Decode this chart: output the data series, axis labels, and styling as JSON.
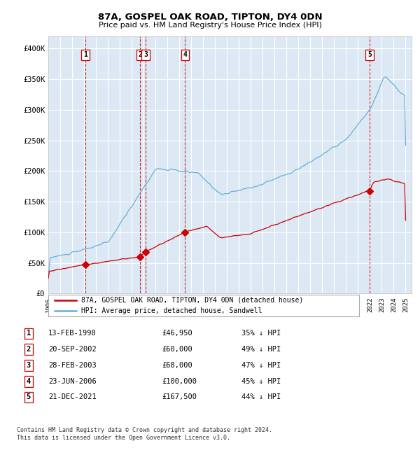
{
  "title1": "87A, GOSPEL OAK ROAD, TIPTON, DY4 0DN",
  "title2": "Price paid vs. HM Land Registry's House Price Index (HPI)",
  "legend_line1": "87A, GOSPEL OAK ROAD, TIPTON, DY4 0DN (detached house)",
  "legend_line2": "HPI: Average price, detached house, Sandwell",
  "footer1": "Contains HM Land Registry data © Crown copyright and database right 2024.",
  "footer2": "This data is licensed under the Open Government Licence v3.0.",
  "transactions": [
    {
      "num": 1,
      "date": "13-FEB-1998",
      "price": 46950,
      "pct": "35% ↓ HPI",
      "year": 1998.12
    },
    {
      "num": 2,
      "date": "20-SEP-2002",
      "price": 60000,
      "pct": "49% ↓ HPI",
      "year": 2002.72
    },
    {
      "num": 3,
      "date": "28-FEB-2003",
      "price": 68000,
      "pct": "47% ↓ HPI",
      "year": 2003.16
    },
    {
      "num": 4,
      "date": "23-JUN-2006",
      "price": 100000,
      "pct": "45% ↓ HPI",
      "year": 2006.47
    },
    {
      "num": 5,
      "date": "21-DEC-2021",
      "price": 167500,
      "pct": "44% ↓ HPI",
      "year": 2021.97
    }
  ],
  "hpi_color": "#6baed6",
  "price_color": "#cc0000",
  "bg_color": "#dce9f5",
  "grid_color": "#ffffff",
  "dashed_line_color": "#cc0000",
  "ylim": [
    0,
    420000
  ],
  "xlim_start": 1995.0,
  "xlim_end": 2025.5,
  "yticks": [
    0,
    50000,
    100000,
    150000,
    200000,
    250000,
    300000,
    350000,
    400000
  ],
  "ytick_labels": [
    "£0",
    "£50K",
    "£100K",
    "£150K",
    "£200K",
    "£250K",
    "£300K",
    "£350K",
    "£400K"
  ]
}
